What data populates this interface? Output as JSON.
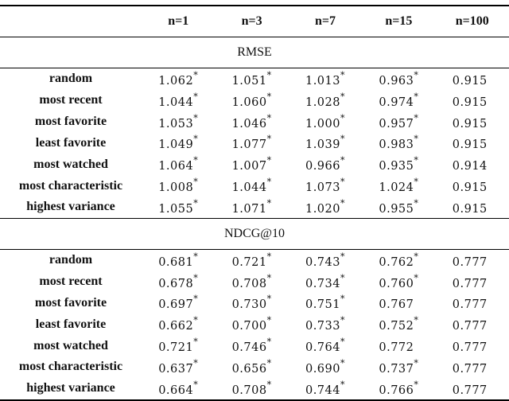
{
  "columns": [
    "",
    "n=1",
    "n=3",
    "n=7",
    "n=15",
    "n=100"
  ],
  "sections": [
    {
      "title": "RMSE",
      "rows": [
        {
          "label": "random",
          "values": [
            "1.062",
            "1.051",
            "1.013",
            "0.963",
            "0.915"
          ],
          "sig": [
            true,
            true,
            true,
            true,
            false
          ]
        },
        {
          "label": "most recent",
          "values": [
            "1.044",
            "1.060",
            "1.028",
            "0.974",
            "0.915"
          ],
          "sig": [
            true,
            true,
            true,
            true,
            false
          ]
        },
        {
          "label": "most favorite",
          "values": [
            "1.053",
            "1.046",
            "1.000",
            "0.957",
            "0.915"
          ],
          "sig": [
            true,
            true,
            true,
            true,
            false
          ]
        },
        {
          "label": "least favorite",
          "values": [
            "1.049",
            "1.077",
            "1.039",
            "0.983",
            "0.915"
          ],
          "sig": [
            true,
            true,
            true,
            true,
            false
          ]
        },
        {
          "label": "most watched",
          "values": [
            "1.064",
            "1.007",
            "0.966",
            "0.935",
            "0.914"
          ],
          "sig": [
            true,
            true,
            true,
            true,
            false
          ]
        },
        {
          "label": "most characteristic",
          "values": [
            "1.008",
            "1.044",
            "1.073",
            "1.024",
            "0.915"
          ],
          "sig": [
            true,
            true,
            true,
            true,
            false
          ]
        },
        {
          "label": "highest variance",
          "values": [
            "1.055",
            "1.071",
            "1.020",
            "0.955",
            "0.915"
          ],
          "sig": [
            true,
            true,
            true,
            true,
            false
          ]
        }
      ]
    },
    {
      "title": "NDCG@10",
      "rows": [
        {
          "label": "random",
          "values": [
            "0.681",
            "0.721",
            "0.743",
            "0.762",
            "0.777"
          ],
          "sig": [
            true,
            true,
            true,
            true,
            false
          ]
        },
        {
          "label": "most recent",
          "values": [
            "0.678",
            "0.708",
            "0.734",
            "0.760",
            "0.777"
          ],
          "sig": [
            true,
            true,
            true,
            true,
            false
          ]
        },
        {
          "label": "most favorite",
          "values": [
            "0.697",
            "0.730",
            "0.751",
            "0.767",
            "0.777"
          ],
          "sig": [
            true,
            true,
            true,
            false,
            false
          ]
        },
        {
          "label": "least favorite",
          "values": [
            "0.662",
            "0.700",
            "0.733",
            "0.752",
            "0.777"
          ],
          "sig": [
            true,
            true,
            true,
            true,
            false
          ]
        },
        {
          "label": "most watched",
          "values": [
            "0.721",
            "0.746",
            "0.764",
            "0.772",
            "0.777"
          ],
          "sig": [
            true,
            true,
            true,
            false,
            false
          ]
        },
        {
          "label": "most characteristic",
          "values": [
            "0.637",
            "0.656",
            "0.690",
            "0.737",
            "0.777"
          ],
          "sig": [
            true,
            true,
            true,
            true,
            false
          ]
        },
        {
          "label": "highest variance",
          "values": [
            "0.664",
            "0.708",
            "0.744",
            "0.766",
            "0.777"
          ],
          "sig": [
            true,
            true,
            true,
            true,
            false
          ]
        }
      ]
    }
  ],
  "significance_marker": "*"
}
